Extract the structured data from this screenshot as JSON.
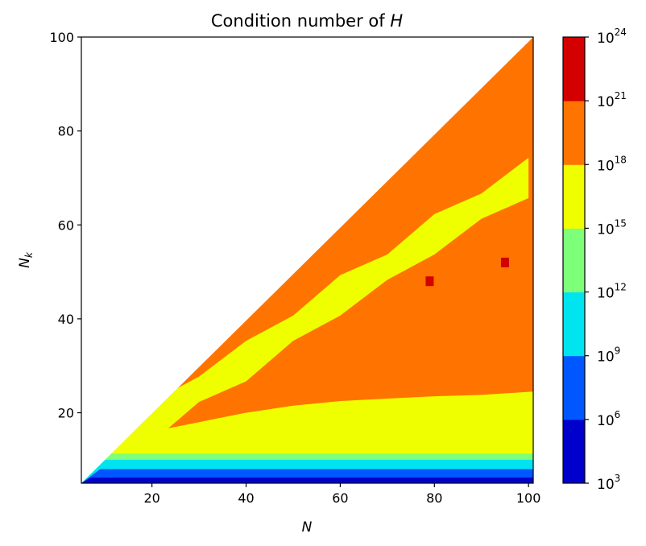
{
  "chart_data": {
    "type": "heatmap",
    "subtype": "filled-contour",
    "title": {
      "prefix": "Condition number of ",
      "symbol": "H"
    },
    "xlabel": "N",
    "ylabel": {
      "base": "N",
      "sub": "k"
    },
    "xlim": [
      5,
      101
    ],
    "ylim": [
      5,
      100
    ],
    "xticks": [
      20,
      40,
      60,
      80,
      100
    ],
    "yticks": [
      20,
      40,
      60,
      80,
      100
    ],
    "grid": false,
    "colorbar": {
      "scale": "log",
      "levels_exponent": [
        3,
        6,
        9,
        12,
        15,
        18,
        21,
        24
      ],
      "tick_labels": [
        {
          "base": "10",
          "exp": "3"
        },
        {
          "base": "10",
          "exp": "6"
        },
        {
          "base": "10",
          "exp": "9"
        },
        {
          "base": "10",
          "exp": "12"
        },
        {
          "base": "10",
          "exp": "15"
        },
        {
          "base": "10",
          "exp": "18"
        },
        {
          "base": "10",
          "exp": "21"
        },
        {
          "base": "10",
          "exp": "24"
        }
      ],
      "colors": [
        "#0000cd",
        "#0057ff",
        "#00e4f0",
        "#7dff7a",
        "#f0ff00",
        "#ff7400",
        "#d40000"
      ]
    },
    "domain": "triangle N >= N_k (region N_k > N undefined)",
    "bands": [
      {
        "level_index": 0,
        "boundary_low": [
          [
            5,
            5
          ],
          [
            101,
            5
          ]
        ],
        "boundary_high": [
          [
            5,
            5
          ],
          [
            7,
            6.2
          ],
          [
            101,
            6.2
          ]
        ]
      },
      {
        "level_index": 1,
        "boundary_low": [
          [
            5,
            5
          ],
          [
            7,
            6.2
          ],
          [
            101,
            6.2
          ]
        ],
        "boundary_high": [
          [
            5,
            5
          ],
          [
            9,
            8.0
          ],
          [
            101,
            8.0
          ]
        ]
      },
      {
        "level_index": 2,
        "boundary_low": [
          [
            5,
            5
          ],
          [
            9,
            8.0
          ],
          [
            101,
            8.0
          ]
        ],
        "boundary_high": [
          [
            5,
            5
          ],
          [
            10,
            10.0
          ],
          [
            101,
            10.0
          ]
        ]
      },
      {
        "level_index": 3,
        "boundary_low": [
          [
            5,
            5
          ],
          [
            10,
            10.0
          ],
          [
            101,
            10.0
          ]
        ],
        "boundary_high": [
          [
            5,
            5
          ],
          [
            11,
            11.3
          ],
          [
            101,
            11.3
          ]
        ]
      },
      {
        "level_index": 4,
        "boundary_low": [
          [
            5,
            5
          ],
          [
            11,
            11.3
          ],
          [
            101,
            11.3
          ]
        ],
        "boundary_high": [
          [
            5,
            5
          ],
          [
            14,
            14.5
          ],
          [
            20,
            16
          ],
          [
            30,
            18
          ],
          [
            40,
            20
          ],
          [
            50,
            21.5
          ],
          [
            60,
            22.5
          ],
          [
            70,
            23
          ],
          [
            80,
            23.5
          ],
          [
            90,
            23.8
          ],
          [
            101,
            24.5
          ]
        ]
      }
    ],
    "upper_band": {
      "level_index": 5,
      "yellow_stripe_center": [
        [
          14,
          14
        ],
        [
          20,
          18
        ],
        [
          30,
          25
        ],
        [
          40,
          31
        ],
        [
          50,
          38
        ],
        [
          60,
          45
        ],
        [
          70,
          51
        ],
        [
          80,
          58
        ],
        [
          90,
          64
        ],
        [
          100,
          70
        ]
      ],
      "yellow_stripe_halfwidth": 3.5
    },
    "red_spots": [
      {
        "x": 79,
        "y": 48
      },
      {
        "x": 95,
        "y": 52
      }
    ]
  }
}
